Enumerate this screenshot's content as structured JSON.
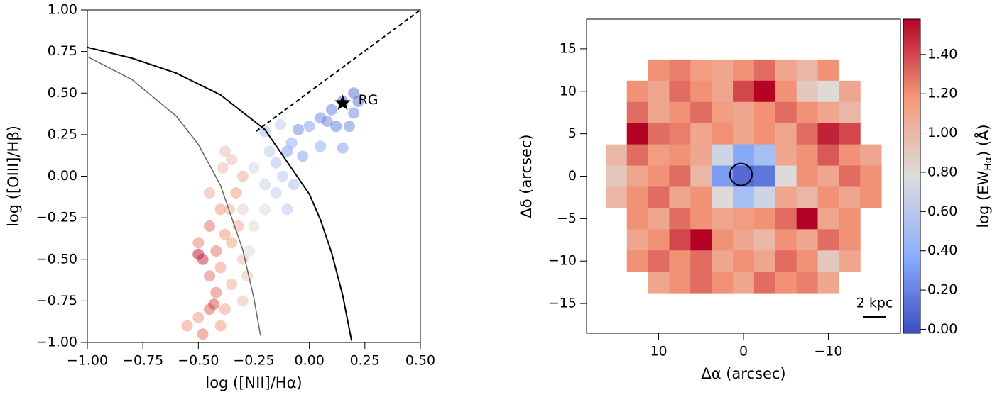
{
  "chart_data": [
    {
      "type": "scatter",
      "xlabel": "log ([NII]/Hα)",
      "ylabel": "log ([OIII]/Hβ)",
      "xlim": [
        -1,
        0.5
      ],
      "ylim": [
        -1,
        1
      ],
      "xticks": [
        {
          "value": -1,
          "label": "−1.00"
        },
        {
          "value": -0.75,
          "label": "−0.75"
        },
        {
          "value": -0.5,
          "label": "−0.50"
        },
        {
          "value": -0.25,
          "label": "−0.25"
        },
        {
          "value": 0,
          "label": "0.00"
        },
        {
          "value": 0.25,
          "label": "0.25"
        },
        {
          "value": 0.5,
          "label": "0.50"
        }
      ],
      "yticks": [
        {
          "value": -1,
          "label": "−1.00"
        },
        {
          "value": -0.75,
          "label": "−0.75"
        },
        {
          "value": -0.5,
          "label": "−0.50"
        },
        {
          "value": -0.25,
          "label": "−0.25"
        },
        {
          "value": 0,
          "label": "0.00"
        },
        {
          "value": 0.25,
          "label": "0.25"
        },
        {
          "value": 0.5,
          "label": "0.50"
        },
        {
          "value": 0.75,
          "label": "0.75"
        },
        {
          "value": 1,
          "label": "1.00"
        }
      ],
      "colormap": [
        "#3b4cc0",
        "#8db0fe",
        "#dddddd",
        "#f4987a",
        "#b40426"
      ],
      "clim": [
        -0.02,
        1.58
      ],
      "series": [
        {
          "alpha": 0.5,
          "x": [
            0.15,
            0.2,
            0.1,
            0.2,
            0.08,
            0.05,
            0.0,
            -0.05,
            0.12,
            -0.1,
            -0.08,
            0.05,
            0.15,
            -0.03,
            -0.15,
            -0.2,
            -0.18,
            -0.12,
            -0.07,
            -0.15,
            -0.2,
            -0.25,
            -0.1,
            -0.2,
            -0.25,
            -0.27,
            -0.3,
            0.22,
            0.18,
            -0.13,
            -0.3,
            -0.35,
            -0.38,
            -0.33,
            -0.4,
            -0.45,
            -0.38,
            -0.42,
            -0.5,
            -0.48,
            -0.45,
            -0.4,
            -0.35,
            -0.32,
            -0.3,
            -0.42,
            -0.45,
            -0.5,
            -0.4,
            -0.48,
            -0.38,
            -0.35,
            -0.43,
            -0.55,
            -0.28,
            -0.3,
            -0.36,
            -0.45,
            -0.5,
            -0.39
          ],
          "values": [
            0.45,
            0.5,
            0.4,
            0.38,
            0.33,
            0.35,
            0.3,
            0.28,
            0.3,
            0.15,
            0.2,
            0.18,
            0.17,
            0.12,
            0.08,
            0.27,
            0.15,
            0.0,
            -0.05,
            -0.1,
            -0.05,
            0.05,
            -0.2,
            -0.2,
            -0.3,
            -0.45,
            -0.2,
            0.45,
            0.3,
            0.31,
            0.0,
            0.1,
            0.15,
            -0.1,
            -0.2,
            -0.3,
            -0.35,
            -0.45,
            -0.47,
            -0.5,
            -0.6,
            -0.55,
            -0.4,
            -0.3,
            -0.5,
            -0.7,
            -0.8,
            -0.85,
            -0.9,
            -0.95,
            -0.8,
            -0.65,
            -0.77,
            -0.9,
            -0.6,
            -0.75,
            -0.2,
            -0.1,
            -0.4,
            0.05
          ],
          "color_values": [
            0.1,
            0.1,
            0.15,
            0.2,
            0.2,
            0.2,
            0.3,
            0.2,
            0.15,
            0.3,
            0.35,
            0.35,
            0.3,
            0.3,
            0.5,
            0.5,
            0.6,
            0.55,
            0.5,
            0.6,
            0.65,
            0.7,
            0.55,
            0.75,
            0.8,
            0.75,
            0.85,
            0.1,
            0.2,
            0.6,
            1.1,
            1.0,
            1.0,
            1.2,
            1.2,
            1.3,
            1.2,
            1.3,
            1.57,
            1.5,
            1.3,
            1.2,
            1.15,
            1.1,
            1.0,
            1.3,
            1.35,
            1.2,
            1.2,
            1.3,
            1.15,
            1.1,
            1.4,
            1.2,
            0.95,
            1.0,
            1.05,
            1.1,
            1.25,
            1.0
          ]
        }
      ],
      "lines": [
        {
          "color": "#000000",
          "style": "solid",
          "x": [
            -1,
            -0.8,
            -0.6,
            -0.4,
            -0.2,
            0,
            0.05,
            0.1,
            0.15,
            0.19
          ],
          "values": [
            0.775,
            0.71,
            0.62,
            0.489,
            0.28,
            -0.108,
            -0.262,
            -0.459,
            -0.716,
            -0.989
          ]
        },
        {
          "color": "#666666",
          "style": "solid",
          "x": [
            -1,
            -0.8,
            -0.6,
            -0.5,
            -0.4,
            -0.3,
            -0.25,
            -0.22
          ],
          "values": [
            0.719,
            0.582,
            0.362,
            0.191,
            -0.056,
            -0.443,
            -0.733,
            -0.959
          ]
        },
        {
          "color": "#000000",
          "style": "dashed",
          "x": [
            -0.24,
            0.5
          ],
          "values": [
            0.27,
            1.0
          ]
        }
      ],
      "markers": [
        {
          "label": "RG",
          "x": 0.15,
          "y": 0.44,
          "color": "#000000"
        }
      ]
    },
    {
      "type": "heatmap",
      "xlabel": "Δα (arcsec)",
      "ylabel": "Δδ (arcsec)",
      "xlim": [
        18.5,
        -18.5
      ],
      "ylim": [
        -18.5,
        18.5
      ],
      "xticks": [
        10,
        0,
        {
          "value": -10,
          "label": "−10"
        }
      ],
      "yticks": [
        {
          "value": -15,
          "label": "−15"
        },
        {
          "value": -10,
          "label": "−10"
        },
        {
          "value": -5,
          "label": "−5"
        },
        0,
        5,
        10,
        15
      ],
      "colormap": [
        "#3b4cc0",
        "#8db0fe",
        "#dddddd",
        "#f4987a",
        "#b40426"
      ],
      "clim": [
        -0.02,
        1.58
      ],
      "x": [
        15,
        12.5,
        10,
        7.5,
        5,
        2.5,
        0,
        -2.5,
        -5,
        -7.5,
        -10,
        -12.5,
        -15
      ],
      "y": [
        15,
        12.5,
        10,
        7.5,
        5,
        2.5,
        0,
        -2.5,
        -5,
        -7.5,
        -10,
        -12.5,
        -15
      ],
      "z": [
        [
          null,
          null,
          null,
          null,
          null,
          null,
          null,
          null,
          null,
          null,
          null,
          null,
          null
        ],
        [
          null,
          null,
          1.2,
          1.25,
          1.15,
          1.1,
          1.2,
          1.3,
          1.1,
          1.0,
          1.2,
          null,
          null
        ],
        [
          null,
          1.2,
          1.1,
          1.3,
          1.2,
          1.1,
          1.4,
          1.6,
          1.2,
          0.9,
          0.8,
          1.1,
          null
        ],
        [
          null,
          1.3,
          1.1,
          1.2,
          1.3,
          1.15,
          1.1,
          1.2,
          1.3,
          1.2,
          1.1,
          1.0,
          null
        ],
        [
          null,
          1.6,
          1.3,
          1.25,
          1.1,
          1.2,
          1.1,
          1.2,
          1.1,
          1.3,
          1.5,
          1.4,
          null
        ],
        [
          1.0,
          1.3,
          1.15,
          1.2,
          1.1,
          0.7,
          0.35,
          0.5,
          1.1,
          1.2,
          1.35,
          1.2,
          1.1
        ],
        [
          0.9,
          1.1,
          1.2,
          1.3,
          1.0,
          0.3,
          0.1,
          0.15,
          0.8,
          1.2,
          1.1,
          1.3,
          1.2
        ],
        [
          1.0,
          1.2,
          1.3,
          1.1,
          1.2,
          0.8,
          0.5,
          0.7,
          1.1,
          1.0,
          1.2,
          1.1,
          1.2
        ],
        [
          null,
          1.2,
          1.1,
          1.3,
          1.2,
          1.1,
          1.15,
          1.2,
          1.3,
          1.6,
          1.1,
          1.2,
          null
        ],
        [
          null,
          1.1,
          1.2,
          1.4,
          1.6,
          1.2,
          1.1,
          1.0,
          1.2,
          1.1,
          1.3,
          1.2,
          null
        ],
        [
          null,
          1.2,
          1.3,
          1.2,
          1.3,
          1.1,
          1.2,
          1.1,
          1.3,
          1.2,
          0.9,
          1.1,
          null
        ],
        [
          null,
          null,
          1.1,
          1.2,
          1.3,
          1.2,
          1.1,
          1.3,
          1.2,
          1.25,
          1.1,
          null,
          null
        ],
        [
          null,
          null,
          null,
          null,
          null,
          null,
          null,
          null,
          null,
          null,
          null,
          null,
          null
        ]
      ],
      "colorbar": {
        "label_parts": [
          "log (EW",
          "Hα",
          ") (Å)"
        ],
        "ticks": [
          {
            "value": 0,
            "label": "0.00"
          },
          {
            "value": 0.2,
            "label": "0.20"
          },
          {
            "value": 0.4,
            "label": "0.40"
          },
          {
            "value": 0.6,
            "label": "0.60"
          },
          {
            "value": 0.8,
            "label": "0.80"
          },
          {
            "value": 1.0,
            "label": "1.00"
          },
          {
            "value": 1.2,
            "label": "1.20"
          },
          {
            "value": 1.4,
            "label": "1.40"
          }
        ]
      },
      "aperture": {
        "x": 0.3,
        "y": 0.2,
        "r": 1.3
      },
      "scalebar": {
        "label": "2 kpc",
        "length": 2.6
      }
    }
  ]
}
